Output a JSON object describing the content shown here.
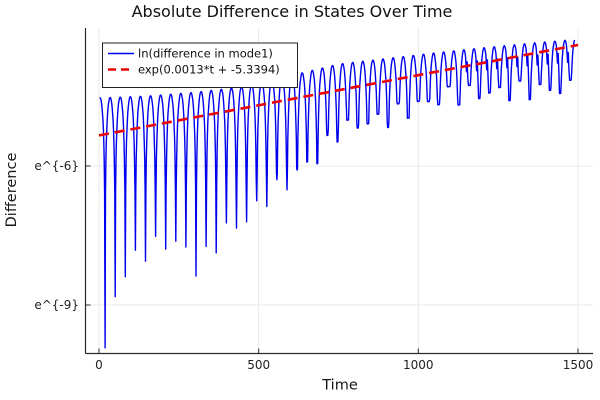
{
  "title": "Absolute Difference in States Over Time",
  "axes": {
    "xlabel": "Time",
    "ylabel": "Difference",
    "xtick_labels": [
      "0",
      "500",
      "1000",
      "1500"
    ],
    "ytick_labels": [
      "e^{-6}",
      "e^{-9}"
    ]
  },
  "legend": {
    "position": "top-left",
    "entries": [
      {
        "label": "ln(difference in mode1)",
        "color": "#0000ee",
        "style": "solid"
      },
      {
        "label": "exp(0.0013*t + -5.3394)",
        "color": "#ee0000",
        "style": "dash"
      }
    ]
  },
  "chart_data": {
    "type": "line",
    "title": "Absolute Difference in States Over Time",
    "xlabel": "Time",
    "ylabel": "Difference",
    "x_scale": "linear",
    "y_scale": "ln",
    "xlim": [
      -40,
      1547
    ],
    "ylim_ln": [
      -10.05,
      -3.0
    ],
    "xticks": [
      0,
      500,
      1000,
      1500
    ],
    "yticks_ln": [
      -6,
      -9
    ],
    "grid": true,
    "series": [
      {
        "name": "ln(difference in mode1)",
        "color": "#0000ee",
        "style": "solid",
        "model": "log_abs_oscillation",
        "t_start": 1,
        "t_end": 1490,
        "period": 31.65,
        "first_zero_t": 19,
        "double_notch_after_t": 1150,
        "peak_envelope_ln": {
          "t": [
            0,
            150,
            300,
            450,
            600,
            750,
            900,
            1050,
            1200,
            1350,
            1490
          ],
          "ln": [
            -4.53,
            -4.49,
            -4.41,
            -4.29,
            -4.05,
            -3.8,
            -3.68,
            -3.56,
            -3.45,
            -3.35,
            -3.27
          ]
        },
        "dip_depth_ln_below_envelope": {
          "t": [
            19,
            50,
            81,
            113,
            144,
            175,
            207,
            238,
            272,
            304,
            332,
            363,
            395,
            426,
            457,
            492,
            523,
            554,
            586,
            617,
            651,
            683,
            714,
            748,
            810,
            900,
            1000,
            1100,
            1250,
            1470
          ],
          "depth": [
            5.4,
            4.3,
            3.8,
            3.5,
            3.35,
            3.25,
            3.2,
            3.2,
            3.4,
            3.8,
            3.6,
            3.35,
            3.05,
            3.0,
            2.9,
            2.7,
            2.5,
            2.4,
            2.3,
            2.15,
            2.0,
            1.9,
            1.7,
            1.45,
            1.35,
            1.3,
            1.1,
            0.95,
            1.0,
            1.05
          ]
        }
      },
      {
        "name": "exp(0.0013*t + -5.3394)",
        "color": "#ee0000",
        "style": "dash",
        "model": "linear_in_ln",
        "slope": 0.0013,
        "intercept": -5.3394,
        "t_range": [
          0,
          1500
        ]
      }
    ]
  },
  "colors": {
    "background": "#ffffff",
    "grid": "#e9e9e9",
    "spine": "#2a2a2a",
    "series1": "#0000ee",
    "series2": "#ee0000"
  }
}
